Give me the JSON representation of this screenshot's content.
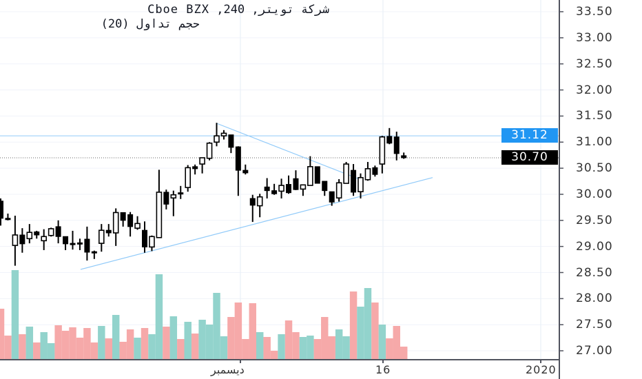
{
  "legend": {
    "title": "شركة تويتر, 240, Cboe BZX",
    "indicator": "حجم تداول (20)"
  },
  "colors": {
    "up_volume": "#92d3cc",
    "down_volume": "#f6a9a9",
    "trendline": "#90caf9",
    "last_price_box": "#2196f3",
    "current_price_box": "#000000",
    "candle": "#000000"
  },
  "price_axis": {
    "ticks": [
      "33.50",
      "33.00",
      "32.50",
      "32.00",
      "31.50",
      "31.00",
      "30.50",
      "30.00",
      "29.50",
      "29.00",
      "28.50",
      "28.00",
      "27.50",
      "27.00"
    ]
  },
  "time_axis": {
    "labels": [
      "ديسمبر",
      "16",
      "2020"
    ]
  },
  "price_labels": {
    "highlight": "31.12",
    "current": "30.70"
  },
  "chart_data": {
    "type": "candlestick",
    "ylim": [
      26.9,
      33.7
    ],
    "candles": [
      [
        29.87,
        29.92,
        29.4,
        29.54
      ],
      [
        29.54,
        29.63,
        29.5,
        29.54
      ],
      [
        29.02,
        29.59,
        28.63,
        29.22
      ],
      [
        29.22,
        29.35,
        28.88,
        29.05
      ],
      [
        29.15,
        29.43,
        29.06,
        29.27
      ],
      [
        29.28,
        29.3,
        29.15,
        29.22
      ],
      [
        29.11,
        29.33,
        28.93,
        29.19
      ],
      [
        29.21,
        29.36,
        29.19,
        29.34
      ],
      [
        29.38,
        29.5,
        29.06,
        29.19
      ],
      [
        29.19,
        29.19,
        28.93,
        29.05
      ],
      [
        29.06,
        29.3,
        28.94,
        29.06
      ],
      [
        29.07,
        29.15,
        28.93,
        29.07
      ],
      [
        29.14,
        29.38,
        28.73,
        28.89
      ],
      [
        28.9,
        28.92,
        28.76,
        28.9
      ],
      [
        29.06,
        29.43,
        28.9,
        29.31
      ],
      [
        29.31,
        29.43,
        29.19,
        29.26
      ],
      [
        29.26,
        29.73,
        29.01,
        29.65
      ],
      [
        29.65,
        29.65,
        29.38,
        29.5
      ],
      [
        29.61,
        29.66,
        29.19,
        29.38
      ],
      [
        29.35,
        29.58,
        29.32,
        29.44
      ],
      [
        29.31,
        29.48,
        28.88,
        28.99
      ],
      [
        28.99,
        29.21,
        28.91,
        29.19
      ],
      [
        29.17,
        30.47,
        29.17,
        30.04
      ],
      [
        30.04,
        30.09,
        29.71,
        29.81
      ],
      [
        29.93,
        30.07,
        29.58,
        29.99
      ],
      [
        30.03,
        30.16,
        29.91,
        30.03
      ],
      [
        30.13,
        30.56,
        30.05,
        30.51
      ],
      [
        30.53,
        30.57,
        30.38,
        30.49
      ],
      [
        30.58,
        30.7,
        30.4,
        30.7
      ],
      [
        30.69,
        31.0,
        30.65,
        30.98
      ],
      [
        31.0,
        31.37,
        30.92,
        31.12
      ],
      [
        31.12,
        31.23,
        31.05,
        31.17
      ],
      [
        31.14,
        31.14,
        30.79,
        30.9
      ],
      [
        30.91,
        30.92,
        29.97,
        30.46
      ],
      [
        30.46,
        30.57,
        30.38,
        30.41
      ],
      [
        29.92,
        29.99,
        29.47,
        29.79
      ],
      [
        29.78,
        30.01,
        29.56,
        29.95
      ],
      [
        30.14,
        30.31,
        29.92,
        30.07
      ],
      [
        30.07,
        30.2,
        29.99,
        30.01
      ],
      [
        30.06,
        30.3,
        29.92,
        30.17
      ],
      [
        30.19,
        30.36,
        30.01,
        30.03
      ],
      [
        30.3,
        30.46,
        30.08,
        30.09
      ],
      [
        30.1,
        30.19,
        29.97,
        30.18
      ],
      [
        30.17,
        30.73,
        30.17,
        30.53
      ],
      [
        30.53,
        30.53,
        30.21,
        30.21
      ],
      [
        30.25,
        30.25,
        29.97,
        30.07
      ],
      [
        30.05,
        30.05,
        29.78,
        29.85
      ],
      [
        29.93,
        30.29,
        29.86,
        30.22
      ],
      [
        30.21,
        30.62,
        30.21,
        30.58
      ],
      [
        30.46,
        30.58,
        29.97,
        30.04
      ],
      [
        30.05,
        30.4,
        29.92,
        30.32
      ],
      [
        30.28,
        30.62,
        30.26,
        30.49
      ],
      [
        30.51,
        30.55,
        30.34,
        30.38
      ],
      [
        30.58,
        31.12,
        30.4,
        31.1
      ],
      [
        31.11,
        31.27,
        30.96,
        30.98
      ],
      [
        31.1,
        31.2,
        30.65,
        30.78
      ],
      [
        30.74,
        30.8,
        30.68,
        30.7
      ]
    ],
    "volume_relative": [
      730,
      340,
      1290,
      360,
      470,
      240,
      390,
      230,
      490,
      410,
      460,
      310,
      450,
      240,
      480,
      300,
      640,
      250,
      430,
      310,
      450,
      360,
      1230,
      470,
      620,
      290,
      540,
      370,
      570,
      500,
      960,
      330,
      610,
      820,
      290,
      810,
      390,
      320,
      120,
      360,
      560,
      390,
      320,
      340,
      290,
      610,
      330,
      430,
      330,
      980,
      760,
      1030,
      820,
      500,
      300,
      480,
      180
    ],
    "horizontal_lines": [
      31.12,
      30.7
    ],
    "trendlines": [
      {
        "from": [
          11.1,
          28.56
        ],
        "to": [
          60.0,
          30.32
        ]
      },
      {
        "from": [
          30.0,
          31.36
        ],
        "to": [
          50.4,
          30.26
        ]
      }
    ]
  }
}
